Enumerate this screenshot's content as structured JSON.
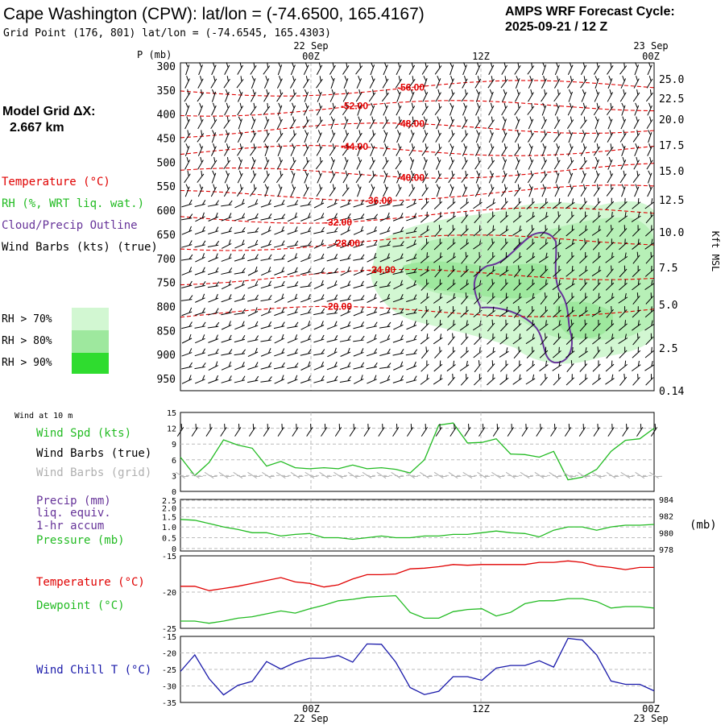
{
  "header": {
    "title": "Cape Washington (CPW):  lat/lon = (-74.6500, 165.4167)",
    "grid_point": "Grid Point (176, 801) lat/lon = (-74.6545, 165.4303)",
    "cycle_label": "AMPS WRF Forecast Cycle:",
    "cycle_value": "2025-09-21 / 12  Z"
  },
  "model": {
    "label": "Model Grid ΔX:",
    "value": "2.667 km"
  },
  "legend": {
    "temperature": "Temperature (°C)",
    "rh": "RH (%, WRT liq. wat.)",
    "cloud": "Cloud/Precip Outline",
    "wind": "Wind Barbs (kts) (true)",
    "rh70": "RH > 70%",
    "rh80": "RH > 80%",
    "rh90": "RH > 90%"
  },
  "colors": {
    "temp": "#e00000",
    "rh": "#22bb22",
    "cloud": "#663399",
    "rh70": "#d2f7d2",
    "rh80": "#9ee89e",
    "rh90": "#2fdc2f",
    "wind_grid": "#b0b0b0",
    "chill": "#1a1aaa"
  },
  "time_axis": {
    "top_dates": [
      "22 Sep",
      "",
      "23 Sep"
    ],
    "labels": [
      "00Z",
      "12Z",
      "00Z"
    ],
    "bottom_dates": [
      "22 Sep",
      "",
      "23 Sep"
    ]
  },
  "panels": {
    "wind10_title": "Wind at 10 m",
    "wind_spd": "Wind Spd (kts)",
    "wind_true": "Wind Barbs (true)",
    "wind_grid": "Wind Barbs (grid)",
    "precip1": "Precip (mm)",
    "precip2": "liq. equiv.",
    "precip3": "1-hr accum",
    "pressure": "Pressure (mb)",
    "mb_unit": "(mb)",
    "temperature": "Temperature (°C)",
    "dewpoint": "Dewpoint (°C)",
    "windchill": "Wind Chill T (°C)"
  },
  "chart_data": [
    {
      "type": "time-height cross section",
      "ylabel": "P (mb)",
      "yticks": [
        "300",
        "350",
        "400",
        "450",
        "500",
        "550",
        "600",
        "650",
        "700",
        "750",
        "800",
        "850",
        "900",
        "950"
      ],
      "right_axis_label": "Kft MSL",
      "right_ticks": [
        "25.0",
        "22.5",
        "20.0",
        "17.5",
        "15.0",
        "12.5",
        "10.0",
        "7.5",
        "5.0",
        "2.5",
        "0.14"
      ],
      "isotherm_labels": [
        "-56.00",
        "-52.00",
        "-48.00",
        "-44.00",
        "-40.00",
        "-36.00",
        "-32.00",
        "-28.00",
        "-24.00",
        "-20.00"
      ],
      "isotherm_pressure_mb": [
        340,
        380,
        425,
        470,
        515,
        560,
        605,
        660,
        730,
        805
      ]
    },
    {
      "type": "line",
      "title": "Wind Spd (kts)",
      "yticks": [
        "15",
        "12",
        "9",
        "6",
        "3",
        "0"
      ],
      "ylim": [
        0,
        15
      ],
      "x_hours": [
        0,
        1,
        2,
        3,
        4,
        5,
        6,
        7,
        8,
        9,
        10,
        11,
        12,
        13,
        14,
        15,
        16,
        17,
        18,
        19,
        20,
        21,
        22,
        23,
        24,
        25,
        26,
        27,
        28,
        29,
        30,
        31,
        32,
        33
      ],
      "values": [
        6.5,
        3.0,
        5.5,
        9.8,
        8.8,
        8.2,
        4.8,
        5.7,
        4.5,
        4.3,
        4.5,
        4.3,
        5.0,
        4.3,
        4.5,
        4.2,
        3.5,
        6.0,
        12.6,
        13.0,
        9.2,
        9.3,
        10.0,
        7.1,
        7.0,
        6.5,
        7.6,
        2.2,
        2.7,
        4.2,
        7.6,
        9.7,
        10.0,
        12.0
      ]
    },
    {
      "type": "line",
      "title": "Pressure (mb)",
      "left_yticks": [
        "2.5",
        "2.0",
        "1.5",
        "1.0",
        "0.5",
        "0"
      ],
      "right_yticks": [
        "984",
        "982",
        "980",
        "978"
      ],
      "ylim": [
        977.8,
        984.0
      ],
      "values": [
        981.6,
        981.5,
        981.1,
        980.7,
        980.4,
        980.0,
        980.0,
        979.6,
        979.8,
        979.9,
        979.4,
        979.4,
        979.2,
        979.4,
        979.6,
        979.4,
        979.4,
        979.6,
        979.6,
        979.8,
        979.8,
        980.0,
        980.2,
        980.0,
        979.9,
        979.5,
        980.3,
        980.7,
        980.7,
        980.3,
        980.7,
        980.9,
        980.9,
        981.0
      ]
    },
    {
      "type": "line",
      "title": "Temperature / Dewpoint (°C)",
      "yticks": [
        "-15",
        "-20",
        "-25"
      ],
      "ylim": [
        -25,
        -15
      ],
      "series": [
        {
          "name": "Temperature (°C)",
          "values": [
            -19.2,
            -19.2,
            -19.8,
            -19.5,
            -19.2,
            -18.8,
            -18.4,
            -18.0,
            -18.6,
            -18.8,
            -19.3,
            -19.0,
            -18.2,
            -17.6,
            -17.6,
            -17.5,
            -16.8,
            -16.7,
            -16.5,
            -16.2,
            -16.3,
            -16.2,
            -16.2,
            -16.2,
            -16.2,
            -15.9,
            -15.9,
            -15.7,
            -15.9,
            -16.4,
            -16.6,
            -16.9,
            -16.6,
            -16.6
          ]
        },
        {
          "name": "Dewpoint (°C)",
          "values": [
            -24.0,
            -24.0,
            -24.3,
            -24.0,
            -23.6,
            -23.4,
            -23.0,
            -22.6,
            -22.9,
            -22.3,
            -21.8,
            -21.2,
            -21.0,
            -20.7,
            -20.6,
            -20.5,
            -22.8,
            -23.6,
            -23.6,
            -22.7,
            -22.4,
            -22.3,
            -23.3,
            -22.8,
            -21.6,
            -21.2,
            -21.2,
            -20.9,
            -20.9,
            -21.3,
            -22.2,
            -22.0,
            -22.0,
            -22.2
          ]
        }
      ]
    },
    {
      "type": "line",
      "title": "Wind Chill T (°C)",
      "yticks": [
        "-15",
        "-20",
        "-25",
        "-30",
        "-35"
      ],
      "ylim": [
        -35,
        -15
      ],
      "values": [
        -25.6,
        -20.6,
        -27.8,
        -32.7,
        -29.8,
        -28.6,
        -22.6,
        -24.9,
        -22.9,
        -21.6,
        -21.6,
        -20.8,
        -22.8,
        -17.3,
        -17.4,
        -22.8,
        -30.5,
        -32.6,
        -31.6,
        -27.2,
        -27.2,
        -28.3,
        -24.6,
        -23.8,
        -23.8,
        -22.4,
        -24.3,
        -15.6,
        -16.1,
        -20.6,
        -28.5,
        -29.5,
        -29.5,
        -31.5
      ]
    }
  ]
}
